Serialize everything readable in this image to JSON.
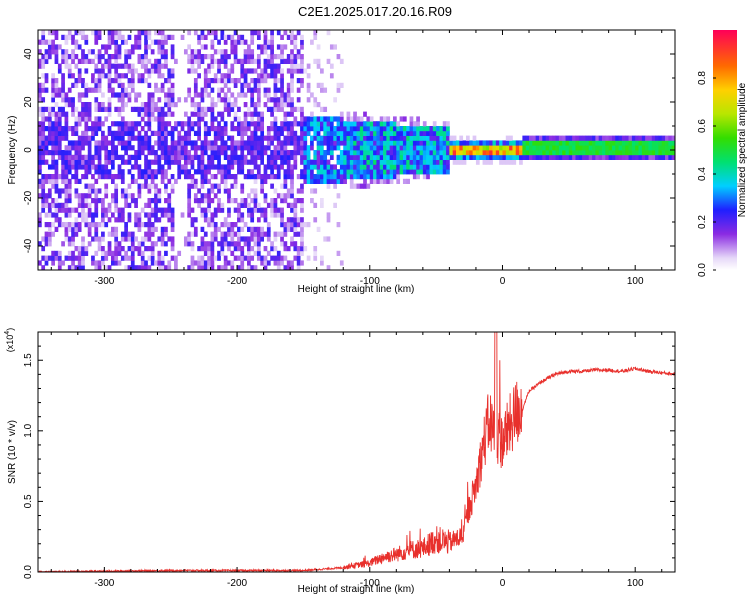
{
  "title": "C2E1.2025.017.20.16.R09",
  "chart_data": [
    {
      "type": "heatmap",
      "xlabel": "Height of straight line (km)",
      "ylabel": "Frequency (Hz)",
      "xlim": [
        -350,
        130
      ],
      "ylim": [
        -50,
        50
      ],
      "xticks": [
        -300,
        -200,
        -100,
        0,
        100
      ],
      "yticks": [
        -40,
        -20,
        0,
        20,
        40
      ],
      "colorbar": {
        "label": "Normalized spectral amplitude",
        "range": [
          0,
          1
        ],
        "ticks": [
          "0.0",
          "0.2",
          "0.4",
          "0.6",
          "0.8"
        ]
      },
      "regions": [
        {
          "x": [
            -350,
            -150
          ],
          "frequency_spread_hz": [
            -50,
            50
          ],
          "amplitude": "low (0.05-0.25), noisy"
        },
        {
          "x": [
            -150,
            -40
          ],
          "frequency_spread_hz": [
            -12,
            12
          ],
          "amplitude": "medium (0.2-0.45)"
        },
        {
          "x": [
            -40,
            15
          ],
          "frequency_spread_hz": [
            -3,
            3
          ],
          "amplitude": "high (0.6-0.95)"
        },
        {
          "x": [
            15,
            130
          ],
          "frequency_spread_hz": [
            -2,
            3
          ],
          "amplitude": "medium-high (0.45-0.55)"
        }
      ]
    },
    {
      "type": "line",
      "xlabel": "Height of straight line (km)",
      "ylabel": "SNR (10 * v/v)",
      "multiplier": "(x10^4)",
      "xlim": [
        -350,
        130
      ],
      "ylim": [
        0,
        1.7
      ],
      "xticks": [
        -300,
        -200,
        -100,
        0,
        100
      ],
      "yticks": [
        "0.0",
        "0.5",
        "1.0",
        "1.5"
      ],
      "series": [
        {
          "color": "#e8302c",
          "x": [
            -350,
            -300,
            -250,
            -200,
            -150,
            -120,
            -100,
            -90,
            -80,
            -70,
            -60,
            -50,
            -40,
            -30,
            -25,
            -20,
            -15,
            -10,
            -5,
            0,
            5,
            10,
            15,
            20,
            30,
            40,
            50,
            60,
            70,
            80,
            90,
            100,
            110,
            120,
            130
          ],
          "y": [
            0.0,
            0.005,
            0.01,
            0.01,
            0.01,
            0.03,
            0.06,
            0.1,
            0.12,
            0.15,
            0.16,
            0.22,
            0.2,
            0.25,
            0.45,
            0.6,
            0.85,
            1.05,
            0.95,
            0.9,
            1.0,
            1.1,
            1.15,
            1.28,
            1.35,
            1.4,
            1.42,
            1.42,
            1.43,
            1.43,
            1.42,
            1.44,
            1.42,
            1.41,
            1.4
          ]
        }
      ]
    }
  ]
}
